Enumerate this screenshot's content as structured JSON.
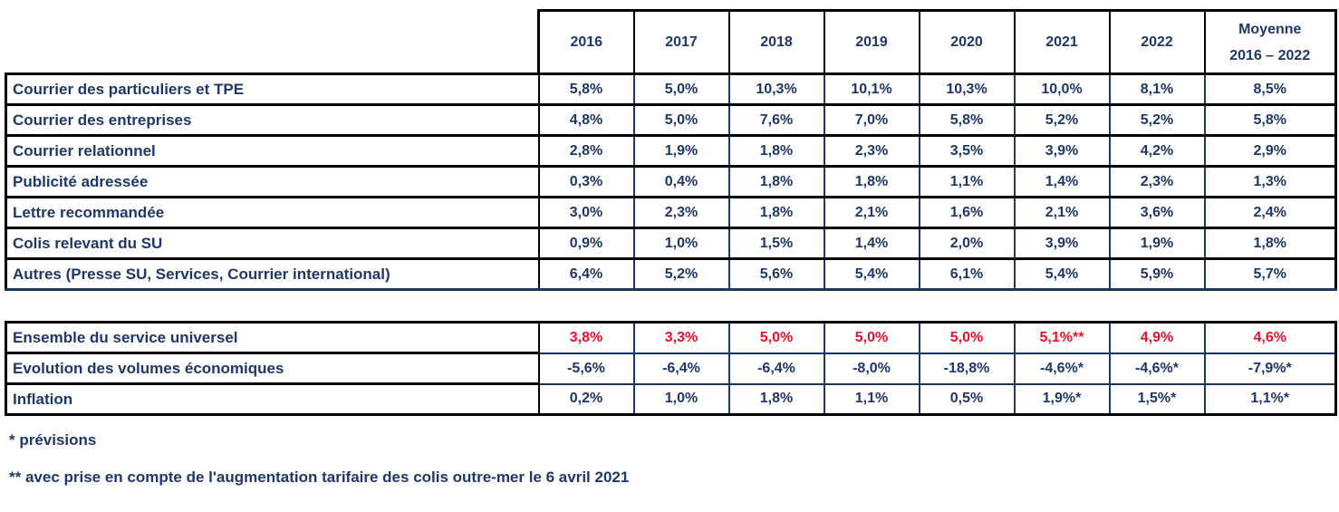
{
  "colors": {
    "text_navy": "#1F3864",
    "text_red": "#E8112D",
    "border_black": "#000000",
    "border_navy": "#1F3864",
    "background": "#FFFFFF"
  },
  "table1": {
    "header": {
      "years": [
        "2016",
        "2017",
        "2018",
        "2019",
        "2020",
        "2021",
        "2022"
      ],
      "avg_line1": "Moyenne",
      "avg_line2": "2016 – 2022"
    },
    "rows": [
      {
        "label": "Courrier des particuliers et TPE",
        "values": [
          "5,8%",
          "5,0%",
          "10,3%",
          "10,1%",
          "10,3%",
          "10,0%",
          "8,1%"
        ],
        "avg": "8,5%"
      },
      {
        "label": "Courrier des entreprises",
        "values": [
          "4,8%",
          "5,0%",
          "7,6%",
          "7,0%",
          "5,8%",
          "5,2%",
          "5,2%"
        ],
        "avg": "5,8%"
      },
      {
        "label": "Courrier relationnel",
        "values": [
          "2,8%",
          "1,9%",
          "1,8%",
          "2,3%",
          "3,5%",
          "3,9%",
          "4,2%"
        ],
        "avg": "2,9%"
      },
      {
        "label": "Publicité adressée",
        "values": [
          "0,3%",
          "0,4%",
          "1,8%",
          "1,8%",
          "1,1%",
          "1,4%",
          "2,3%"
        ],
        "avg": "1,3%"
      },
      {
        "label": "Lettre recommandée",
        "values": [
          "3,0%",
          "2,3%",
          "1,8%",
          "2,1%",
          "1,6%",
          "2,1%",
          "3,6%"
        ],
        "avg": "2,4%"
      },
      {
        "label": "Colis relevant du SU",
        "values": [
          "0,9%",
          "1,0%",
          "1,5%",
          "1,4%",
          "2,0%",
          "3,9%",
          "1,9%"
        ],
        "avg": "1,8%"
      },
      {
        "label": "Autres (Presse SU, Services, Courrier international)",
        "values": [
          "6,4%",
          "5,2%",
          "5,6%",
          "5,4%",
          "6,1%",
          "5,4%",
          "5,9%"
        ],
        "avg": "5,7%"
      }
    ]
  },
  "table2": {
    "rows": [
      {
        "label": "Ensemble du service universel",
        "values": [
          "3,8%",
          "3,3%",
          "5,0%",
          "5,0%",
          "5,0%",
          "5,1%**",
          "4,9%"
        ],
        "avg": "4,6%",
        "highlight": "red"
      },
      {
        "label": "Evolution des volumes économiques",
        "values": [
          "-5,6%",
          "-6,4%",
          "-6,4%",
          "-8,0%",
          "-18,8%",
          "-4,6%*",
          "-4,6%*"
        ],
        "avg": "-7,9%*",
        "highlight": "none"
      },
      {
        "label": "Inflation",
        "values": [
          "0,2%",
          "1,0%",
          "1,8%",
          "1,1%",
          "0,5%",
          "1,9%*",
          "1,5%*"
        ],
        "avg": "1,1%*",
        "highlight": "none"
      }
    ]
  },
  "footnotes": [
    "* prévisions",
    "** avec prise en compte de l'augmentation tarifaire des colis outre-mer le 6 avril 2021"
  ]
}
